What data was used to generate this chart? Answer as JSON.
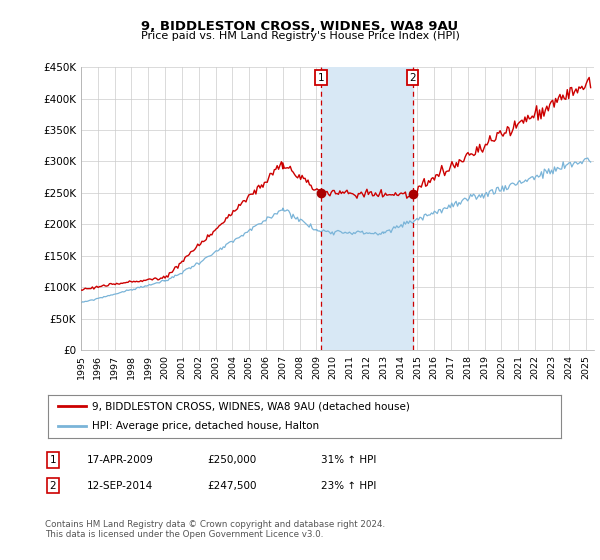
{
  "title": "9, BIDDLESTON CROSS, WIDNES, WA8 9AU",
  "subtitle": "Price paid vs. HM Land Registry's House Price Index (HPI)",
  "ylabel_ticks": [
    "£0",
    "£50K",
    "£100K",
    "£150K",
    "£200K",
    "£250K",
    "£300K",
    "£350K",
    "£400K",
    "£450K"
  ],
  "ytick_values": [
    0,
    50000,
    100000,
    150000,
    200000,
    250000,
    300000,
    350000,
    400000,
    450000
  ],
  "ylim": [
    0,
    450000
  ],
  "xlim_start": 1995.0,
  "xlim_end": 2025.5,
  "sale1_date": 2009.29,
  "sale1_price": 250000,
  "sale2_date": 2014.71,
  "sale2_price": 247500,
  "line_color_hpi": "#7ab4d8",
  "line_color_price": "#cc0000",
  "marker_color": "#aa0000",
  "legend_label_price": "9, BIDDLESTON CROSS, WIDNES, WA8 9AU (detached house)",
  "legend_label_hpi": "HPI: Average price, detached house, Halton",
  "footer_text": "Contains HM Land Registry data © Crown copyright and database right 2024.\nThis data is licensed under the Open Government Licence v3.0.",
  "box_color": "#d8e8f5",
  "vline_color": "#cc0000",
  "background_color": "#ffffff",
  "grid_color": "#cccccc",
  "sale1_date_str": "17-APR-2009",
  "sale1_price_str": "£250,000",
  "sale1_hpi_str": "31% ↑ HPI",
  "sale2_date_str": "12-SEP-2014",
  "sale2_price_str": "£247,500",
  "sale2_hpi_str": "23% ↑ HPI"
}
